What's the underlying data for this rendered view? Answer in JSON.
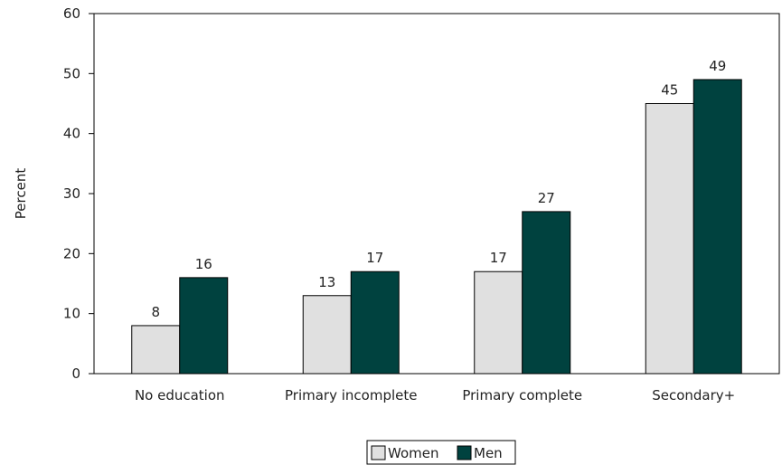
{
  "chart_data": {
    "type": "bar",
    "categories": [
      "No education",
      "Primary incomplete",
      "Primary complete",
      "Secondary+"
    ],
    "series": [
      {
        "name": "Women",
        "values": [
          8,
          13,
          17,
          45
        ],
        "value_labels": [
          "8",
          "13",
          "17",
          "45"
        ],
        "color": "#e0e0e0"
      },
      {
        "name": "Men",
        "values": [
          16,
          17,
          27,
          49
        ],
        "value_labels": [
          "16",
          "17",
          "27",
          "49"
        ],
        "color": "#00423f"
      }
    ],
    "title": "",
    "xlabel": "",
    "ylabel": "Percent",
    "ylim": [
      0,
      60
    ],
    "yticks": [
      0,
      10,
      20,
      30,
      40,
      50,
      60
    ],
    "ytick_labels": [
      "0",
      "10",
      "20",
      "30",
      "40",
      "50",
      "60"
    ],
    "grid": false,
    "legend_position": "bottom-center"
  }
}
